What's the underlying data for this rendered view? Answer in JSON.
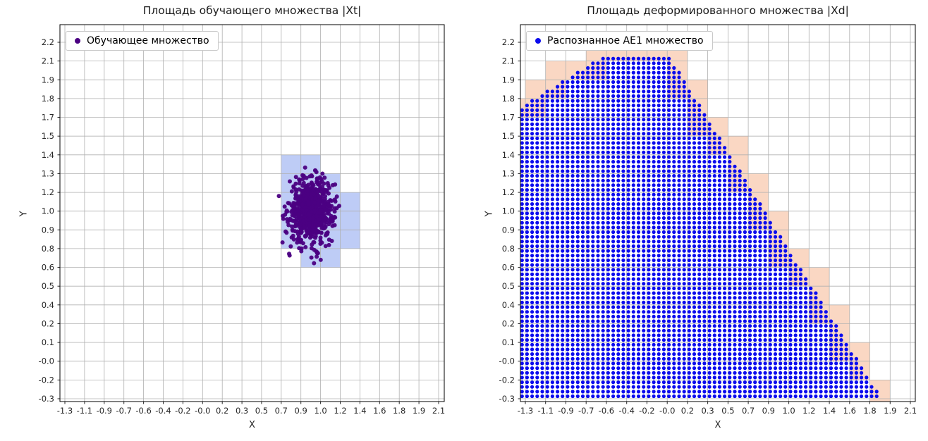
{
  "chart_data": [
    {
      "type": "scatter",
      "title": "Площадь обучающего множества |Xt|",
      "xlabel": "X",
      "ylabel": "Y",
      "grid": true,
      "legend_position": "upper left",
      "legend": [
        {
          "label": "Обучающее множество",
          "color": "#4b0082"
        }
      ],
      "x_tick_labels": [
        "-1.3",
        "-1.1",
        "-0.9",
        "-0.7",
        "-0.6",
        "-0.4",
        "-0.2",
        "-0.0",
        "0.2",
        "0.3",
        "0.5",
        "0.7",
        "0.9",
        "1.0",
        "1.2",
        "1.4",
        "1.6",
        "1.8",
        "1.9",
        "2.1"
      ],
      "y_tick_labels": [
        "2.2",
        "2.1",
        "1.9",
        "1.8",
        "1.7",
        "1.5",
        "1.4",
        "1.3",
        "1.2",
        "1.0",
        "0.9",
        "0.8",
        "0.6",
        "0.5",
        "0.4",
        "0.2",
        "0.1",
        "-0.0",
        "-0.2",
        "-0.3"
      ],
      "x_tick_span": [
        -1.3,
        2.1
      ],
      "y_tick_span": [
        -0.3,
        2.2
      ],
      "cluster": {
        "center": [
          0.94,
          1.02
        ],
        "std": [
          0.1,
          0.11
        ],
        "count": 750,
        "seed": 1234,
        "color": "#4b0082",
        "point_radius": 3
      },
      "highlight_cells": {
        "color": "rgba(110,143,235,0.45)",
        "rects": [
          [
            0.668,
            0.753,
            1.205,
            1.279
          ],
          [
            0.668,
            1.279,
            1.026,
            1.411
          ],
          [
            1.205,
            0.753,
            1.384,
            1.147
          ],
          [
            0.847,
            0.621,
            1.205,
            0.753
          ]
        ]
      },
      "grid_color": "#b0b0b0"
    },
    {
      "type": "scatter",
      "title": "Площадь деформированного множества |Xd|",
      "xlabel": "X",
      "ylabel": "Y",
      "grid": true,
      "legend_position": "upper left",
      "legend": [
        {
          "label": "Распознанное AE1 множество",
          "color": "#0b0bee"
        }
      ],
      "x_tick_labels": [
        "-1.3",
        "-1.1",
        "-0.9",
        "-0.7",
        "-0.6",
        "-0.4",
        "-0.2",
        "-0.0",
        "0.2",
        "0.3",
        "0.5",
        "0.7",
        "0.9",
        "1.0",
        "1.2",
        "1.4",
        "1.6",
        "1.8",
        "1.9",
        "2.1"
      ],
      "y_tick_labels": [
        "2.2",
        "2.1",
        "1.9",
        "1.8",
        "1.7",
        "1.5",
        "1.4",
        "1.3",
        "1.2",
        "1.0",
        "0.9",
        "0.8",
        "0.6",
        "0.5",
        "0.4",
        "0.2",
        "0.1",
        "-0.0",
        "-0.2",
        "-0.3"
      ],
      "x_tick_span": [
        -1.3,
        2.1
      ],
      "y_tick_span": [
        -0.3,
        2.2
      ],
      "region": {
        "polygon": [
          [
            -1.4,
            -0.345
          ],
          [
            -1.4,
            1.72
          ],
          [
            -0.62,
            2.1
          ],
          [
            -0.03,
            2.1
          ],
          [
            1.88,
            -0.345
          ]
        ],
        "dot_color": "#0b0bee",
        "dot_radius": 2.6,
        "dot_step_x": 0.044737,
        "dot_step_y": 0.032895,
        "dot_origin": [
          -1.3295,
          -0.3158
        ]
      },
      "boundary_cells_color": "rgba(242,140,82,0.35)",
      "grid_color": "#b0b0b0"
    }
  ]
}
